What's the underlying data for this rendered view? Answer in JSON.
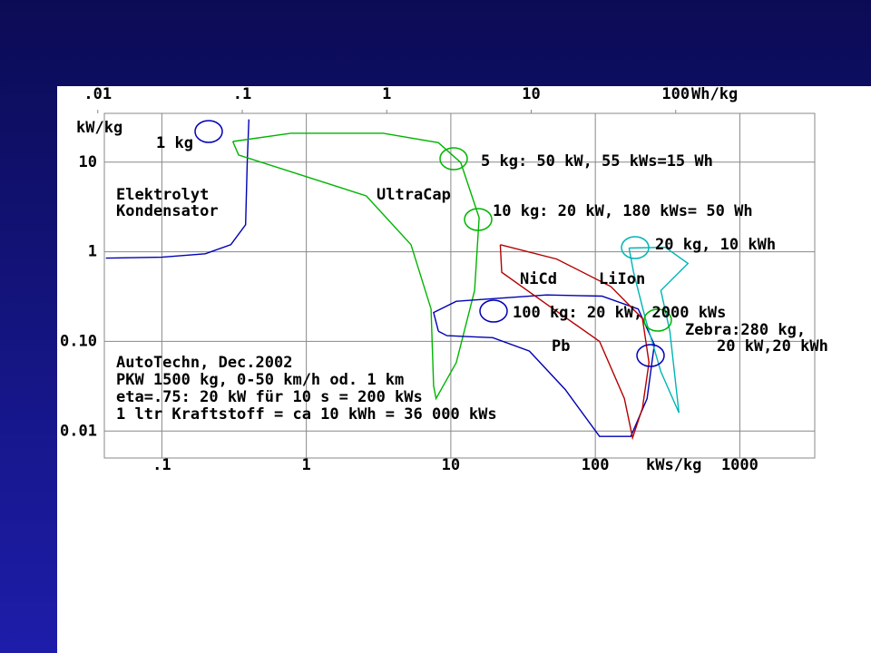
{
  "chart_data": {
    "type": "line",
    "xscale": "log",
    "yscale": "log",
    "xlim": [
      0.04,
      3300
    ],
    "ylim": [
      0.005,
      35
    ],
    "xticks": [
      {
        "value": 0.1,
        "label": ".1"
      },
      1,
      10,
      100,
      1000
    ],
    "yticks": [
      10,
      1,
      {
        "value": 0.1,
        "label": "0.10"
      },
      0.01
    ],
    "x2lim": [
      0.0111,
      917
    ],
    "x2ticks": [
      {
        "value": 0.01,
        "label": ".01"
      },
      {
        "value": 0.1,
        "label": ".1"
      },
      1,
      10,
      100
    ],
    "x_label": "kWs/kg",
    "x2_label": "Wh/kg",
    "y_label": "kW/kg",
    "grid": true,
    "series": [
      {
        "name": "Elektrolyt",
        "color": "#0000b4",
        "x": [
          0.041,
          0.1,
          0.2,
          0.3,
          0.38,
          0.39,
          0.4
        ],
        "values": [
          0.85,
          0.87,
          0.95,
          1.2,
          2,
          10,
          30
        ]
      },
      {
        "name": "UltraCap",
        "color": "#00b400",
        "x": [
          0.31,
          0.78,
          3.4,
          8.2,
          11.7,
          15.7,
          14.6,
          10.9,
          7.9,
          7.6,
          7.3,
          5.3,
          2.6,
          0.34,
          0.31
        ],
        "values": [
          17,
          21,
          21,
          16.5,
          9.9,
          2.4,
          0.37,
          0.058,
          0.023,
          0.032,
          0.23,
          1.2,
          4.2,
          12,
          17
        ]
      },
      {
        "name": "Pb",
        "color": "#0000b4",
        "x": [
          8.2,
          7.6,
          10.9,
          46,
          111,
          198,
          256,
          228,
          176,
          107,
          62,
          35,
          19.5,
          9.4,
          8.2
        ],
        "values": [
          0.13,
          0.21,
          0.28,
          0.33,
          0.32,
          0.23,
          0.092,
          0.023,
          0.0087,
          0.0087,
          0.029,
          0.078,
          0.11,
          0.116,
          0.13
        ]
      },
      {
        "name": "NiCd",
        "color": "#b40000",
        "x": [
          22,
          54,
          128,
          212,
          235,
          212,
          181,
          159,
          107,
          46,
          22.5,
          22
        ],
        "values": [
          1.2,
          0.83,
          0.41,
          0.18,
          0.058,
          0.018,
          0.0084,
          0.023,
          0.1,
          0.26,
          0.59,
          1.2
        ]
      },
      {
        "name": "LiIon",
        "color": "#00b4b4",
        "x": [
          171,
          305,
          438,
          284,
          328,
          379,
          284,
          222,
          184,
          171
        ],
        "values": [
          1.1,
          1.12,
          0.74,
          0.37,
          0.13,
          0.016,
          0.046,
          0.18,
          0.59,
          1.1
        ]
      }
    ],
    "annotations": [
      "Kondensator",
      "1 kg",
      "5 kg: 50 kW, 55 kWs=15 Wh",
      "10 kg: 20 kW, 180 kWs= 50 Wh",
      "20 kg, 10 kWh",
      "100 kg: 20 kW, 2000 kWs",
      "Zebra:280 kg,",
      "20 kW,20 kWh",
      "AutoTechn, Dec.2002",
      "PKW 1500 kg, 0-50 km/h od. 1 km",
      "eta=.75: 20 kW für 10 s = 200 kWs",
      "1 ltr Kraftstoff = ca 10 kWh = 36 000 kWs"
    ]
  }
}
